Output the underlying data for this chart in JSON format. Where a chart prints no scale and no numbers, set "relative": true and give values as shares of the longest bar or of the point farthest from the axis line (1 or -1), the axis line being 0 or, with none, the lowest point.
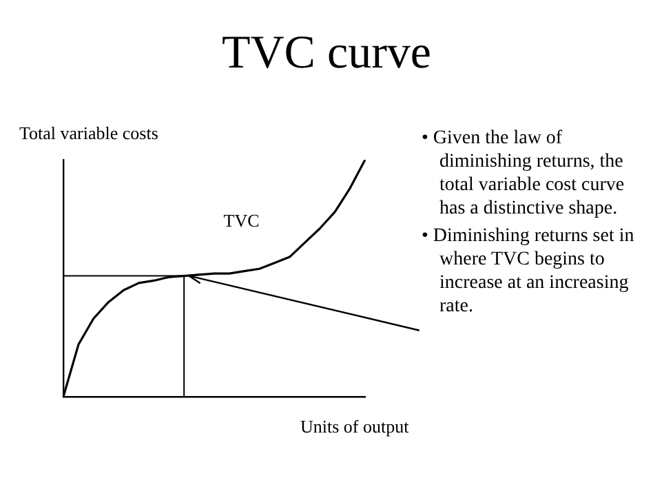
{
  "chart_data": {
    "type": "line",
    "title": "TVC curve",
    "xlabel": "Units of output",
    "ylabel": "Total variable costs",
    "relative": true,
    "grid": false,
    "legend": false,
    "marker": "none",
    "line_style": "solid",
    "categories": [
      null,
      null,
      null,
      null,
      null,
      null,
      null,
      null,
      null,
      null,
      null,
      null,
      null,
      null,
      null,
      null,
      null,
      null,
      null,
      null,
      null
    ],
    "series": [
      {
        "name": "TVC",
        "color": "#000000",
        "values": [
          0,
          0.22,
          0.33,
          0.4,
          0.45,
          0.48,
          0.49,
          0.505,
          0.51,
          0.515,
          0.52,
          0.52,
          0.53,
          0.54,
          0.565,
          0.59,
          0.65,
          0.71,
          0.78,
          0.88,
          1
        ]
      }
    ],
    "ref_lines": [
      {
        "axis": "y",
        "value": 0.51,
        "color": "#000000"
      }
    ],
    "annotations": [
      "• Given the law of diminishing returns, the total variable cost curve has a distinctive shape.",
      "• Diminishing returns set in where TVC begins to increase at an increasing  rate."
    ]
  }
}
